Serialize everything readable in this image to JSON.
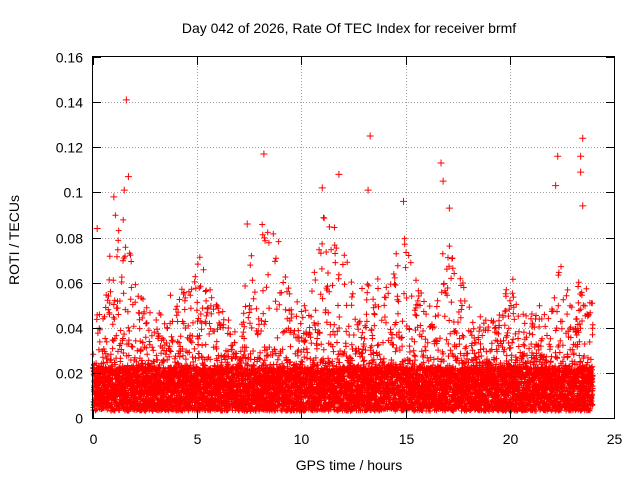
{
  "chart_data": {
    "type": "scatter",
    "title": "Day 042 of 2026, Rate Of TEC Index for receiver brmf",
    "xlabel": "GPS time / hours",
    "ylabel": "ROTI / TECUs",
    "xlim": [
      0,
      25
    ],
    "ylim": [
      0,
      0.16
    ],
    "xticks": [
      0,
      5,
      10,
      15,
      20,
      25
    ],
    "xtick_labels": [
      "0",
      "5",
      "10",
      "15",
      "20",
      "25"
    ],
    "yticks": [
      0,
      0.02,
      0.04,
      0.06,
      0.08,
      0.1,
      0.12,
      0.14,
      0.16
    ],
    "ytick_labels": [
      "0",
      "0.02",
      "0.04",
      "0.06",
      "0.08",
      "0.1",
      "0.12",
      "0.14",
      "0.16"
    ],
    "grid": true,
    "marker": "+",
    "color": "#ff0000",
    "series": [
      {
        "name": "ROTI",
        "notable_points": [
          {
            "x": 1.6,
            "y": 0.141
          },
          {
            "x": 13.3,
            "y": 0.125
          },
          {
            "x": 23.5,
            "y": 0.124
          },
          {
            "x": 22.3,
            "y": 0.116
          },
          {
            "x": 23.4,
            "y": 0.116
          },
          {
            "x": 8.2,
            "y": 0.117
          },
          {
            "x": 16.7,
            "y": 0.113
          },
          {
            "x": 11.8,
            "y": 0.108
          },
          {
            "x": 1.7,
            "y": 0.107
          },
          {
            "x": 22.2,
            "y": 0.103
          },
          {
            "x": 23.4,
            "y": 0.109
          },
          {
            "x": 13.2,
            "y": 0.101
          },
          {
            "x": 1.5,
            "y": 0.101
          },
          {
            "x": 23.5,
            "y": 0.094
          },
          {
            "x": 1.0,
            "y": 0.098
          },
          {
            "x": 11.0,
            "y": 0.102
          },
          {
            "x": 7.4,
            "y": 0.086
          },
          {
            "x": 0.2,
            "y": 0.084
          },
          {
            "x": 17.1,
            "y": 0.093
          },
          {
            "x": 14.9,
            "y": 0.096
          },
          {
            "x": 16.8,
            "y": 0.105
          }
        ],
        "envelope": [
          {
            "x": 0.0,
            "y": 0.045
          },
          {
            "x": 0.5,
            "y": 0.05
          },
          {
            "x": 1.0,
            "y": 0.09
          },
          {
            "x": 1.5,
            "y": 0.09
          },
          {
            "x": 2.0,
            "y": 0.065
          },
          {
            "x": 2.5,
            "y": 0.05
          },
          {
            "x": 3.0,
            "y": 0.045
          },
          {
            "x": 3.5,
            "y": 0.055
          },
          {
            "x": 4.0,
            "y": 0.055
          },
          {
            "x": 4.5,
            "y": 0.06
          },
          {
            "x": 5.0,
            "y": 0.075
          },
          {
            "x": 5.5,
            "y": 0.06
          },
          {
            "x": 6.0,
            "y": 0.05
          },
          {
            "x": 6.5,
            "y": 0.045
          },
          {
            "x": 7.0,
            "y": 0.035
          },
          {
            "x": 7.5,
            "y": 0.075
          },
          {
            "x": 8.0,
            "y": 0.085
          },
          {
            "x": 8.5,
            "y": 0.095
          },
          {
            "x": 9.0,
            "y": 0.075
          },
          {
            "x": 9.5,
            "y": 0.055
          },
          {
            "x": 10.0,
            "y": 0.055
          },
          {
            "x": 10.5,
            "y": 0.06
          },
          {
            "x": 11.0,
            "y": 0.09
          },
          {
            "x": 11.5,
            "y": 0.085
          },
          {
            "x": 12.0,
            "y": 0.09
          },
          {
            "x": 12.5,
            "y": 0.06
          },
          {
            "x": 13.0,
            "y": 0.06
          },
          {
            "x": 13.5,
            "y": 0.06
          },
          {
            "x": 14.0,
            "y": 0.065
          },
          {
            "x": 14.5,
            "y": 0.075
          },
          {
            "x": 15.0,
            "y": 0.09
          },
          {
            "x": 15.5,
            "y": 0.065
          },
          {
            "x": 16.0,
            "y": 0.055
          },
          {
            "x": 16.5,
            "y": 0.06
          },
          {
            "x": 17.0,
            "y": 0.085
          },
          {
            "x": 17.5,
            "y": 0.07
          },
          {
            "x": 18.0,
            "y": 0.05
          },
          {
            "x": 18.5,
            "y": 0.045
          },
          {
            "x": 19.0,
            "y": 0.045
          },
          {
            "x": 19.5,
            "y": 0.05
          },
          {
            "x": 20.0,
            "y": 0.065
          },
          {
            "x": 20.5,
            "y": 0.055
          },
          {
            "x": 21.0,
            "y": 0.05
          },
          {
            "x": 21.5,
            "y": 0.05
          },
          {
            "x": 22.0,
            "y": 0.055
          },
          {
            "x": 22.5,
            "y": 0.07
          },
          {
            "x": 23.0,
            "y": 0.055
          },
          {
            "x": 23.5,
            "y": 0.07
          },
          {
            "x": 24.0,
            "y": 0.05
          }
        ],
        "baseline_range": [
          0.003,
          0.022
        ]
      }
    ]
  }
}
